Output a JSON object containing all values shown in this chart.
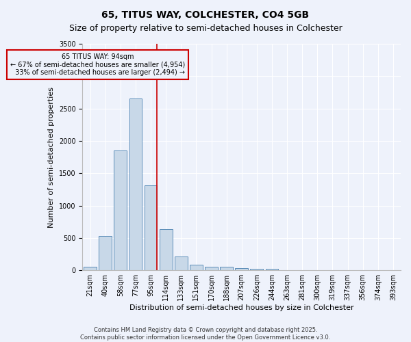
{
  "title": "65, TITUS WAY, COLCHESTER, CO4 5GB",
  "subtitle": "Size of property relative to semi-detached houses in Colchester",
  "xlabel": "Distribution of semi-detached houses by size in Colchester",
  "ylabel": "Number of semi-detached properties",
  "footer1": "Contains HM Land Registry data © Crown copyright and database right 2025.",
  "footer2": "Contains public sector information licensed under the Open Government Licence v3.0.",
  "categories": [
    "21sqm",
    "40sqm",
    "58sqm",
    "77sqm",
    "95sqm",
    "114sqm",
    "133sqm",
    "151sqm",
    "170sqm",
    "188sqm",
    "207sqm",
    "226sqm",
    "244sqm",
    "263sqm",
    "281sqm",
    "300sqm",
    "319sqm",
    "337sqm",
    "356sqm",
    "374sqm",
    "393sqm"
  ],
  "values": [
    60,
    530,
    1850,
    2650,
    1310,
    640,
    210,
    90,
    50,
    55,
    30,
    20,
    20,
    5,
    5,
    5,
    5,
    5,
    5,
    5,
    5
  ],
  "bar_color": "#c8d8e8",
  "bar_edge_color": "#5b8db8",
  "marker_line_index": 4,
  "marker_label": "65 TITUS WAY: 94sqm",
  "pct_smaller": "67% of semi-detached houses are smaller (4,954)",
  "pct_larger": "33% of semi-detached houses are larger (2,494)",
  "annotation_box_color": "#cc0000",
  "ylim": [
    0,
    3500
  ],
  "background_color": "#eef2fb",
  "title_fontsize": 10,
  "subtitle_fontsize": 9,
  "xlabel_fontsize": 8,
  "ylabel_fontsize": 8,
  "tick_fontsize": 7,
  "ann_fontsize": 7,
  "footer_fontsize": 6
}
